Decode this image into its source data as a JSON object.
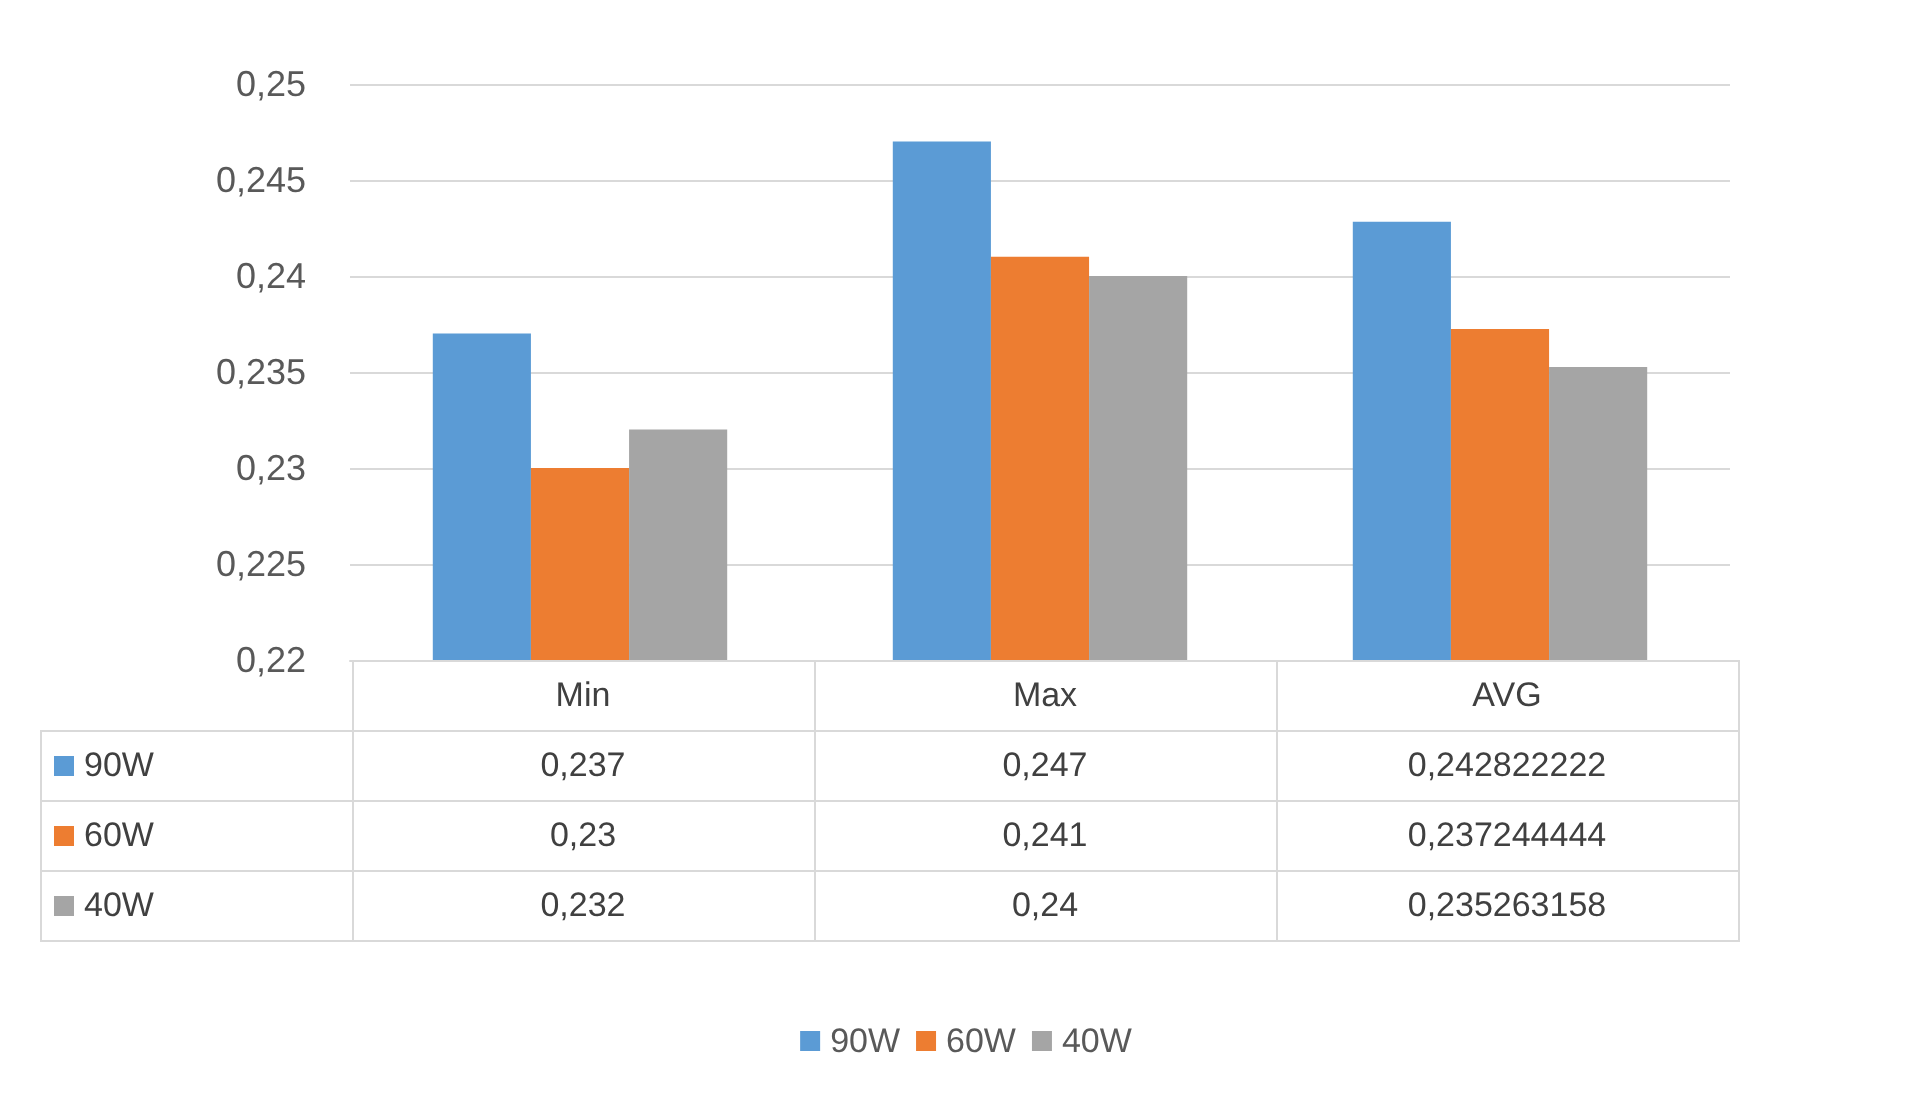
{
  "chart_data": {
    "type": "bar",
    "categories": [
      "Min",
      "Max",
      "AVG"
    ],
    "series": [
      {
        "name": "90W",
        "color": "#5b9bd5",
        "values": [
          0.237,
          0.247,
          0.242822222
        ],
        "value_labels": [
          "0,237",
          "0,247",
          "0,242822222"
        ]
      },
      {
        "name": "60W",
        "color": "#ed7d31",
        "values": [
          0.23,
          0.241,
          0.237244444
        ],
        "value_labels": [
          "0,23",
          "0,241",
          "0,237244444"
        ]
      },
      {
        "name": "40W",
        "color": "#a5a5a5",
        "values": [
          0.232,
          0.24,
          0.235263158
        ],
        "value_labels": [
          "0,232",
          "0,24",
          "0,235263158"
        ]
      }
    ],
    "ylim": [
      0.22,
      0.25
    ],
    "yticks": [
      {
        "value": 0.22,
        "label": "0,22"
      },
      {
        "value": 0.225,
        "label": "0,225"
      },
      {
        "value": 0.23,
        "label": "0,23"
      },
      {
        "value": 0.235,
        "label": "0,235"
      },
      {
        "value": 0.24,
        "label": "0,24"
      },
      {
        "value": 0.245,
        "label": "0,245"
      },
      {
        "value": 0.25,
        "label": "0,25"
      }
    ],
    "grid": "y",
    "legend": "bottom"
  }
}
